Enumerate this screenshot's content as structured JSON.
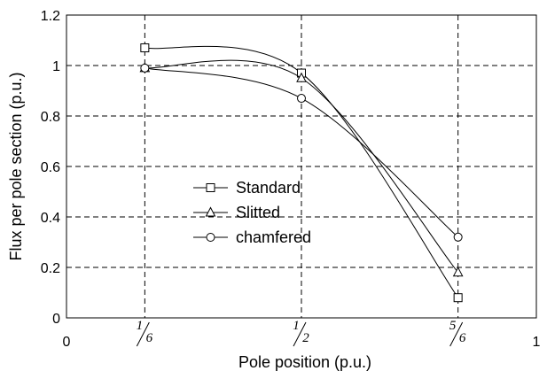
{
  "chart_data": {
    "type": "line",
    "title": "",
    "xlabel": "Pole  position (p.u.)",
    "ylabel": "Flux per pole section (p.u.)",
    "xlim": [
      0,
      1
    ],
    "ylim": [
      0,
      1.2
    ],
    "x": [
      0.1667,
      0.5,
      0.8333
    ],
    "x_ticks": [
      {
        "value": 0,
        "label": "0"
      },
      {
        "value": 1,
        "label": "1"
      }
    ],
    "x_fraction_ticks": [
      {
        "value": 0.1667,
        "num": "1",
        "den": "6"
      },
      {
        "value": 0.5,
        "num": "1",
        "den": "2"
      },
      {
        "value": 0.8333,
        "num": "5",
        "den": "6"
      }
    ],
    "y_ticks": [
      "0",
      "0.2",
      "0.4",
      "0.6",
      "0.8",
      "1",
      "1.2"
    ],
    "y_tick_values": [
      0,
      0.2,
      0.4,
      0.6,
      0.8,
      1.0,
      1.2
    ],
    "grid": "dashed",
    "legend_position": "center-left",
    "series": [
      {
        "name": "Standard",
        "marker": "square",
        "values": [
          1.07,
          0.97,
          0.08
        ]
      },
      {
        "name": "Slitted",
        "marker": "triangle",
        "values": [
          0.99,
          0.95,
          0.18
        ]
      },
      {
        "name": "chamfered",
        "marker": "circle",
        "values": [
          0.99,
          0.87,
          0.32
        ]
      }
    ]
  }
}
